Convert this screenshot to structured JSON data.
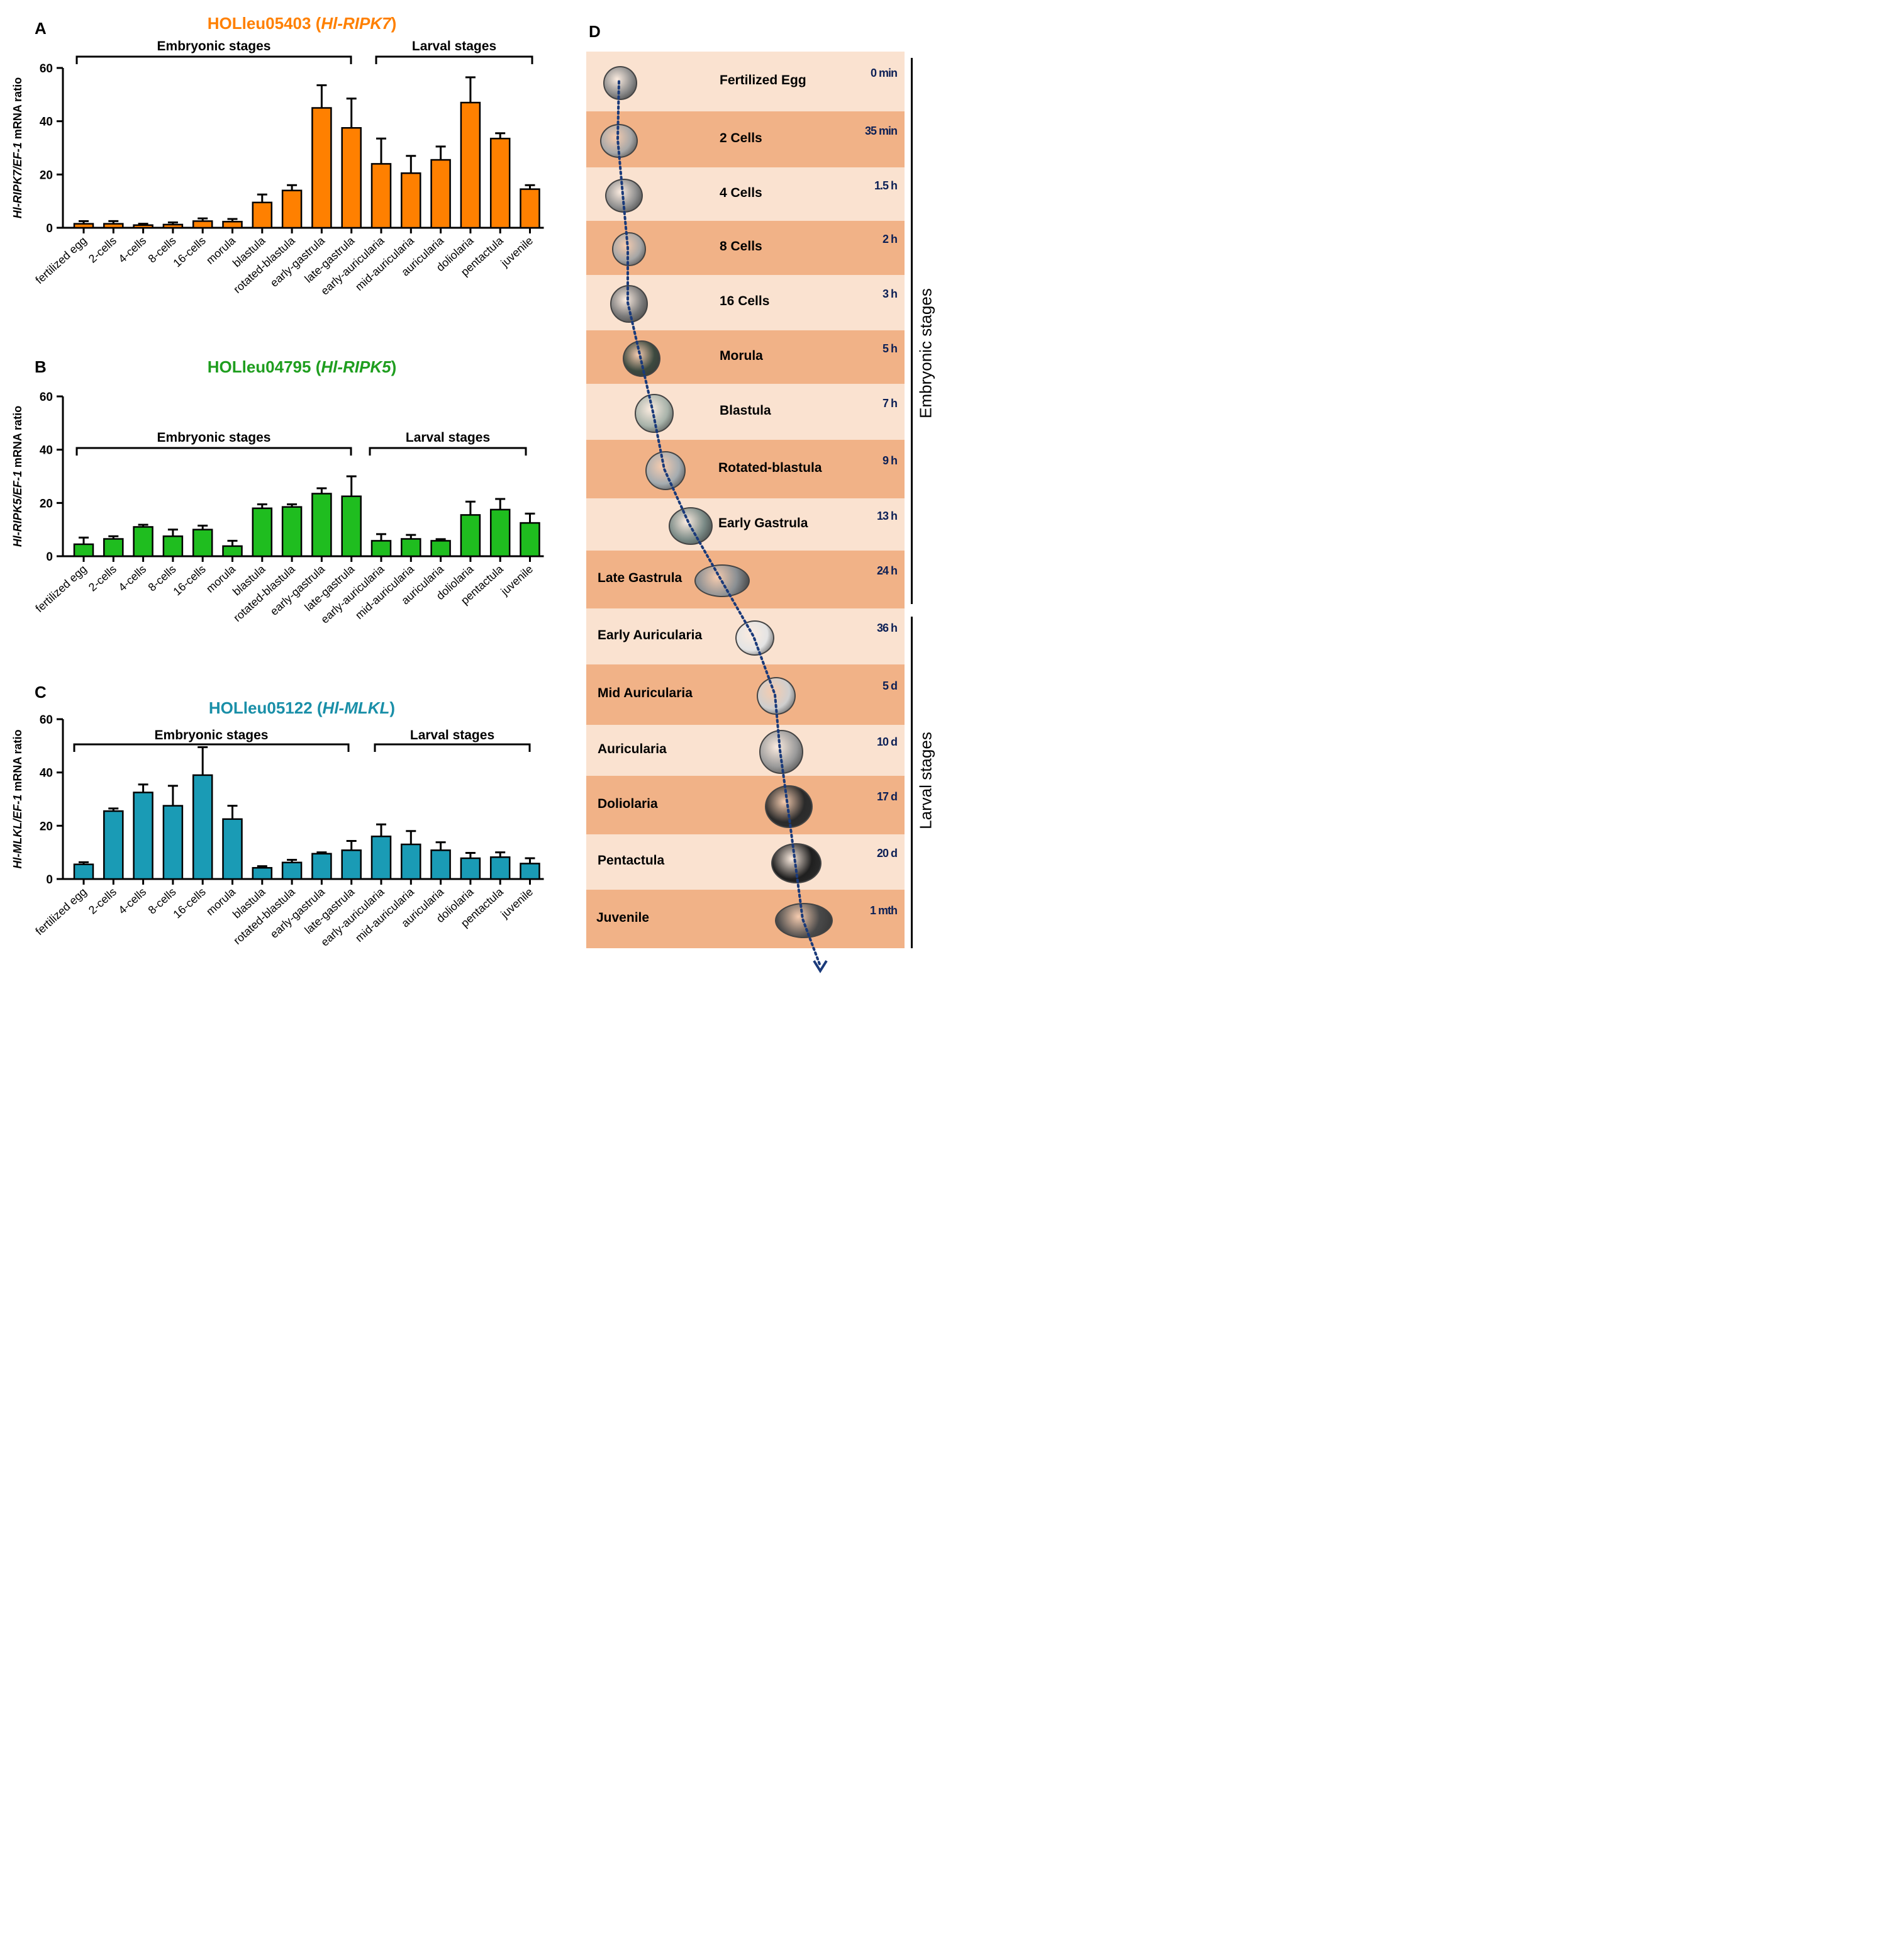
{
  "panels": {
    "a": "A",
    "b": "B",
    "c": "C",
    "d": "D"
  },
  "chart_data": [
    {
      "id": "A",
      "type": "bar",
      "title_gene": "HOLleu05403 (",
      "title_symbol": "Hl-RIPK7",
      "title_close": ")",
      "color": "#ff8000",
      "ylabel_gene": "Hl-RIPK7/EF-1",
      "ylabel_rest": " mRNA ratio",
      "ylim": [
        0,
        60
      ],
      "yticks": [
        0,
        20,
        40,
        60
      ],
      "group_labels": {
        "embryonic": "Embryonic stages",
        "larval": "Larval stages"
      },
      "categories": [
        "fertilized egg",
        "2-cells",
        "4-cells",
        "8-cells",
        "16-cells",
        "morula",
        "blastula",
        "rotated-blastula",
        "early-gastrula",
        "late-gastrula",
        "early-auricularia",
        "mid-auricularia",
        "auricularia",
        "doliolaria",
        "pentactula",
        "juvenile"
      ],
      "values": [
        1.5,
        1.5,
        1.0,
        1.2,
        2.5,
        2.3,
        9.5,
        14,
        45,
        37.5,
        24,
        20.5,
        25.5,
        47,
        33.5,
        14.5
      ],
      "errors": [
        1.0,
        1.0,
        0.5,
        0.8,
        1.0,
        1.0,
        3.0,
        2.0,
        8.5,
        11,
        9.5,
        6.5,
        5.0,
        9.5,
        2.0,
        1.5
      ]
    },
    {
      "id": "B",
      "type": "bar",
      "title_gene": "HOLleu04795 (",
      "title_symbol": "Hl-RIPK5",
      "title_close": ")",
      "color": "#1fbd1f",
      "ylabel_gene": "Hl-RIPK5/EF-1",
      "ylabel_rest": " mRNA ratio",
      "ylim": [
        0,
        60
      ],
      "yticks": [
        0,
        20,
        40,
        60
      ],
      "group_labels": {
        "embryonic": "Embryonic stages",
        "larval": "Larval stages"
      },
      "categories": [
        "fertilized egg",
        "2-cells",
        "4-cells",
        "8-cells",
        "16-cells",
        "morula",
        "blastula",
        "rotated-blastula",
        "early-gastrula",
        "late-gastrula",
        "early-auricularia",
        "mid-auricularia",
        "auricularia",
        "doliolaria",
        "pentactula",
        "juvenile"
      ],
      "values": [
        4.5,
        6.5,
        11,
        7.5,
        10,
        3.8,
        18,
        18.5,
        23.5,
        22.5,
        5.8,
        6.5,
        5.8,
        15.5,
        17.5,
        12.5
      ],
      "errors": [
        2.5,
        1.0,
        0.8,
        2.5,
        1.5,
        2.0,
        1.5,
        1.0,
        2.0,
        7.5,
        2.5,
        1.5,
        0.6,
        5.0,
        4.0,
        3.5
      ]
    },
    {
      "id": "C",
      "type": "bar",
      "title_gene": "HOLleu05122 (",
      "title_symbol": "Hl-MLKL",
      "title_close": ")",
      "color": "#1a9bb5",
      "ylabel_gene": "Hl-MLKL/EF-1",
      "ylabel_rest": " mRNA ratio",
      "ylim": [
        0,
        60
      ],
      "yticks": [
        0,
        20,
        40,
        60
      ],
      "group_labels": {
        "embryonic": "Embryonic stages",
        "larval": "Larval stages"
      },
      "categories": [
        "fertilized egg",
        "2-cells",
        "4-cells",
        "8-cells",
        "16-cells",
        "morula",
        "blastula",
        "rotated-blastula",
        "early-gastrula",
        "late-gastrula",
        "early-auricularia",
        "mid-auricularia",
        "auricularia",
        "doliolaria",
        "pentactula",
        "juvenile"
      ],
      "values": [
        5.5,
        25.5,
        32.5,
        27.5,
        39,
        22.5,
        4.2,
        6.2,
        9.5,
        10.8,
        16,
        13,
        10.8,
        7.8,
        8.2,
        5.8
      ],
      "errors": [
        0.8,
        1.0,
        3.0,
        7.5,
        10.5,
        5.0,
        0.6,
        1.0,
        0.5,
        3.5,
        4.5,
        5.0,
        3.0,
        2.0,
        1.8,
        2.0
      ]
    }
  ],
  "timeline": {
    "embryonic_label": "Embryonic stages",
    "larval_label": "Larval stages",
    "stages": [
      {
        "name": "Fertilized Egg",
        "time": "0 min",
        "shade": "#fae2d0"
      },
      {
        "name": "2 Cells",
        "time": "35 min",
        "shade": "#f1b287"
      },
      {
        "name": "4 Cells",
        "time": "1.5 h",
        "shade": "#fae2d0"
      },
      {
        "name": "8 Cells",
        "time": "2 h",
        "shade": "#f1b287"
      },
      {
        "name": "16 Cells",
        "time": "3 h",
        "shade": "#fae2d0"
      },
      {
        "name": "Morula",
        "time": "5 h",
        "shade": "#f1b287"
      },
      {
        "name": "Blastula",
        "time": "7 h",
        "shade": "#fae2d0"
      },
      {
        "name": "Rotated-blastula",
        "time": "9 h",
        "shade": "#f1b287"
      },
      {
        "name": "Early Gastrula",
        "time": "13 h",
        "shade": "#fae2d0"
      },
      {
        "name": "Late Gastrula",
        "time": "24 h",
        "shade": "#f1b287"
      },
      {
        "name": "Early Auricularia",
        "time": "36 h",
        "shade": "#fae2d0"
      },
      {
        "name": "Mid Auricularia",
        "time": "5 d",
        "shade": "#f1b287"
      },
      {
        "name": "Auricularia",
        "time": "10 d",
        "shade": "#fae2d0"
      },
      {
        "name": "Doliolaria",
        "time": "17 d",
        "shade": "#f1b287"
      },
      {
        "name": "Pentactula",
        "time": "20 d",
        "shade": "#fae2d0"
      },
      {
        "name": "Juvenile",
        "time": "1 mth",
        "shade": "#f1b287"
      }
    ]
  }
}
